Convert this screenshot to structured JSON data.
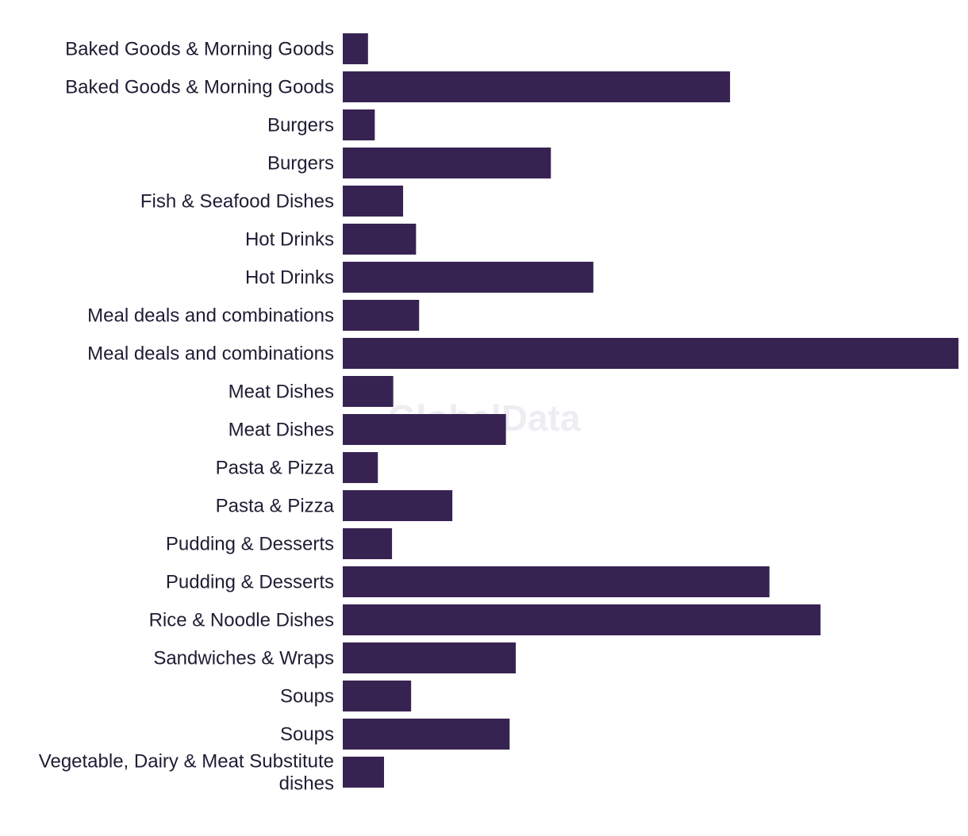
{
  "watermark": "GlobalData",
  "colors": {
    "bar": "#372352",
    "label": "#1f1d33",
    "watermark": "#efedf2"
  },
  "chart_data": {
    "type": "bar",
    "orientation": "horizontal",
    "title": "",
    "xlabel": "",
    "ylabel": "",
    "grid": false,
    "legend": "none",
    "xlim": [
      0,
      100
    ],
    "categories": [
      "Baked Goods & Morning Goods",
      "Baked Goods & Morning Goods",
      "Burgers",
      "Burgers",
      "Fish & Seafood Dishes",
      "Hot Drinks",
      "Hot Drinks",
      "Meal deals and combinations",
      "Meal deals and combinations",
      "Meat Dishes",
      "Meat Dishes",
      "Pasta & Pizza",
      "Pasta & Pizza",
      "Pudding & Desserts",
      "Pudding & Desserts",
      "Rice & Noodle Dishes",
      "Sandwiches & Wraps",
      "Soups",
      "Soups",
      "Vegetable, Dairy & Meat Substitute dishes"
    ],
    "category_lines": [
      [
        "Baked Goods & Morning Goods"
      ],
      [
        "Baked Goods & Morning Goods"
      ],
      [
        "Burgers"
      ],
      [
        "Burgers"
      ],
      [
        "Fish & Seafood Dishes"
      ],
      [
        "Hot Drinks"
      ],
      [
        "Hot Drinks"
      ],
      [
        "Meal deals and combinations"
      ],
      [
        "Meal deals and combinations"
      ],
      [
        "Meat Dishes"
      ],
      [
        "Meat Dishes"
      ],
      [
        "Pasta & Pizza"
      ],
      [
        "Pasta & Pizza"
      ],
      [
        "Pudding & Desserts"
      ],
      [
        "Pudding & Desserts"
      ],
      [
        "Rice & Noodle Dishes"
      ],
      [
        "Sandwiches & Wraps"
      ],
      [
        "Soups"
      ],
      [
        "Soups"
      ],
      [
        "Vegetable, Dairy & Meat Substitute",
        "dishes"
      ]
    ],
    "values": [
      4.1,
      62.9,
      5.2,
      33.8,
      9.8,
      11.9,
      40.7,
      12.4,
      100,
      8.2,
      26.5,
      5.7,
      17.8,
      8.0,
      69.3,
      77.6,
      28.1,
      11.1,
      27.1,
      6.7
    ]
  }
}
